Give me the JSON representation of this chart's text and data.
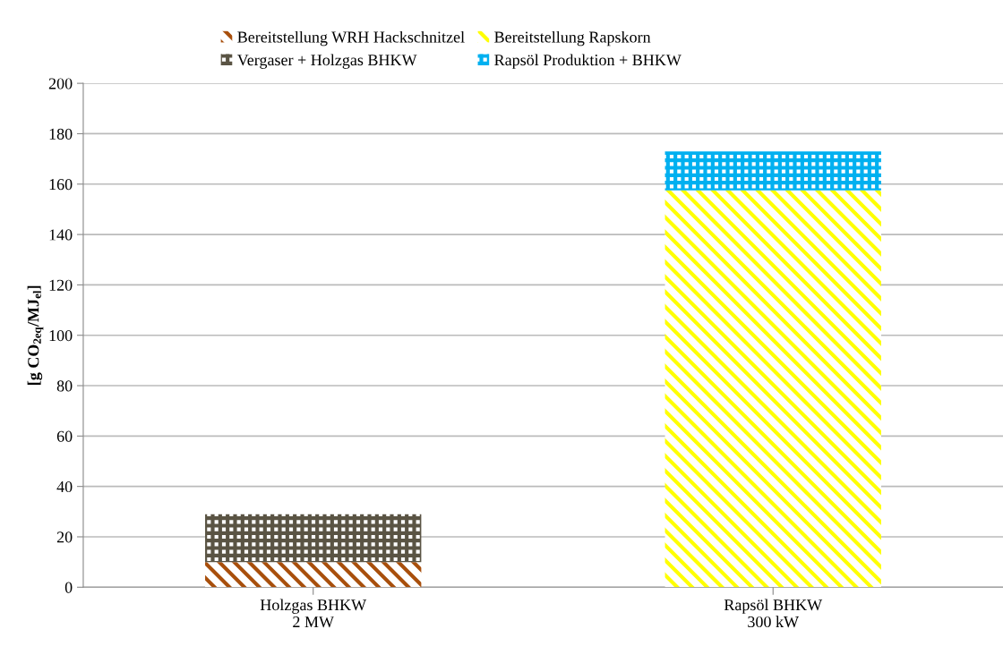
{
  "chart_data": {
    "type": "bar",
    "stacked": true,
    "ylabel": "[g CO$_{2eq}$/MJ$_{el}$]",
    "categories": [
      "Holzgas BHKW\n2 MW",
      "Rapsöl BHKW\n300 kW"
    ],
    "series": [
      {
        "name": "Bereitstellung WRH Hackschnitzel",
        "color": "#a84f0c",
        "values": [
          10,
          null
        ]
      },
      {
        "name": "Vergaser + Holzgas BHKW",
        "color": "#5a5444",
        "values": [
          19,
          null
        ]
      },
      {
        "name": "Bereitstellung Rapskorn",
        "color": "#ffff00",
        "values": [
          null,
          157.5
        ]
      },
      {
        "name": "Rapsöl Produktion + BHKW",
        "color": "#00b0f0",
        "values": [
          null,
          15.5
        ]
      }
    ],
    "ylim": [
      0,
      200
    ],
    "yticks": [
      0,
      20,
      40,
      60,
      80,
      100,
      120,
      140,
      160,
      180,
      200
    ],
    "grid": "y",
    "legend": "top"
  }
}
